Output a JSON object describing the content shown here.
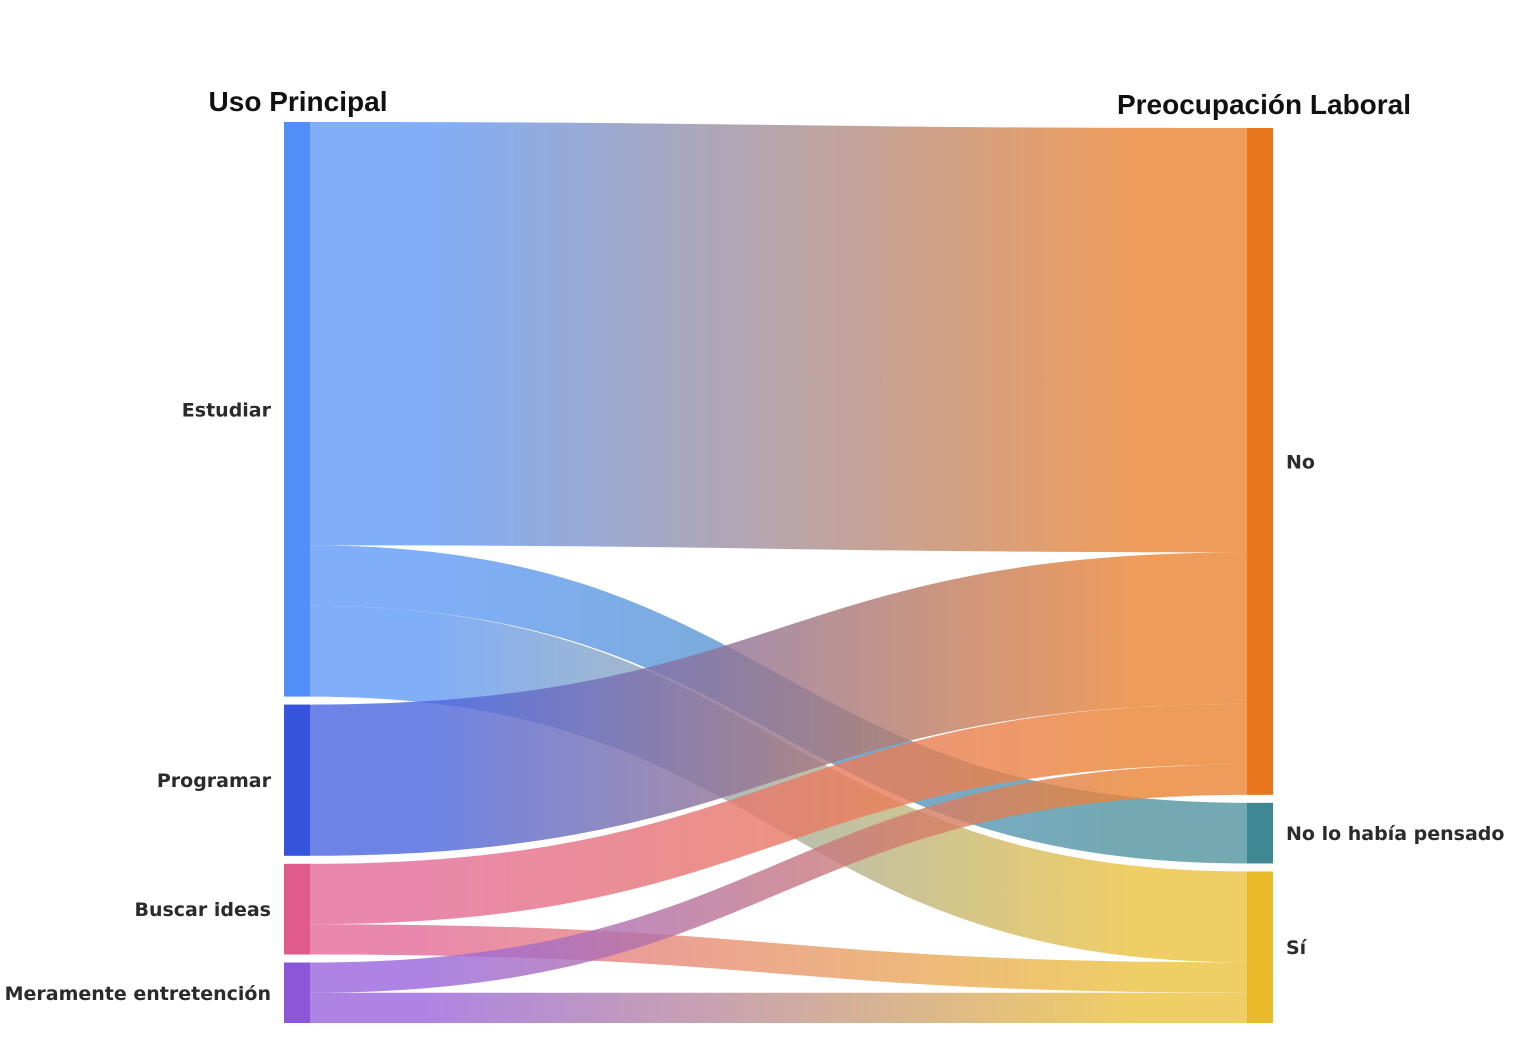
{
  "chart_data": {
    "type": "sankey",
    "left_title": "Uso Principal",
    "right_title": "Preocupación Laboral",
    "left_nodes": [
      {
        "name": "Estudiar",
        "color": "#4f8ff7"
      },
      {
        "name": "Programar",
        "color": "#3553dc"
      },
      {
        "name": "Buscar ideas",
        "color": "#e05a8c"
      },
      {
        "name": "Meramente entretención",
        "color": "#8d55d8"
      }
    ],
    "right_nodes": [
      {
        "name": "No",
        "color": "#e8761c"
      },
      {
        "name": "No lo había pensado",
        "color": "#3e8893"
      },
      {
        "name": "Sí",
        "color": "#e9bb2b"
      }
    ],
    "links": [
      {
        "source": "Estudiar",
        "target": "No",
        "value": 14
      },
      {
        "source": "Estudiar",
        "target": "No lo había pensado",
        "value": 2
      },
      {
        "source": "Estudiar",
        "target": "Sí",
        "value": 3
      },
      {
        "source": "Programar",
        "target": "No",
        "value": 5
      },
      {
        "source": "Buscar ideas",
        "target": "No",
        "value": 2
      },
      {
        "source": "Buscar ideas",
        "target": "Sí",
        "value": 1
      },
      {
        "source": "Meramente entretención",
        "target": "No",
        "value": 1
      },
      {
        "source": "Meramente entretención",
        "target": "Sí",
        "value": 1
      }
    ]
  }
}
